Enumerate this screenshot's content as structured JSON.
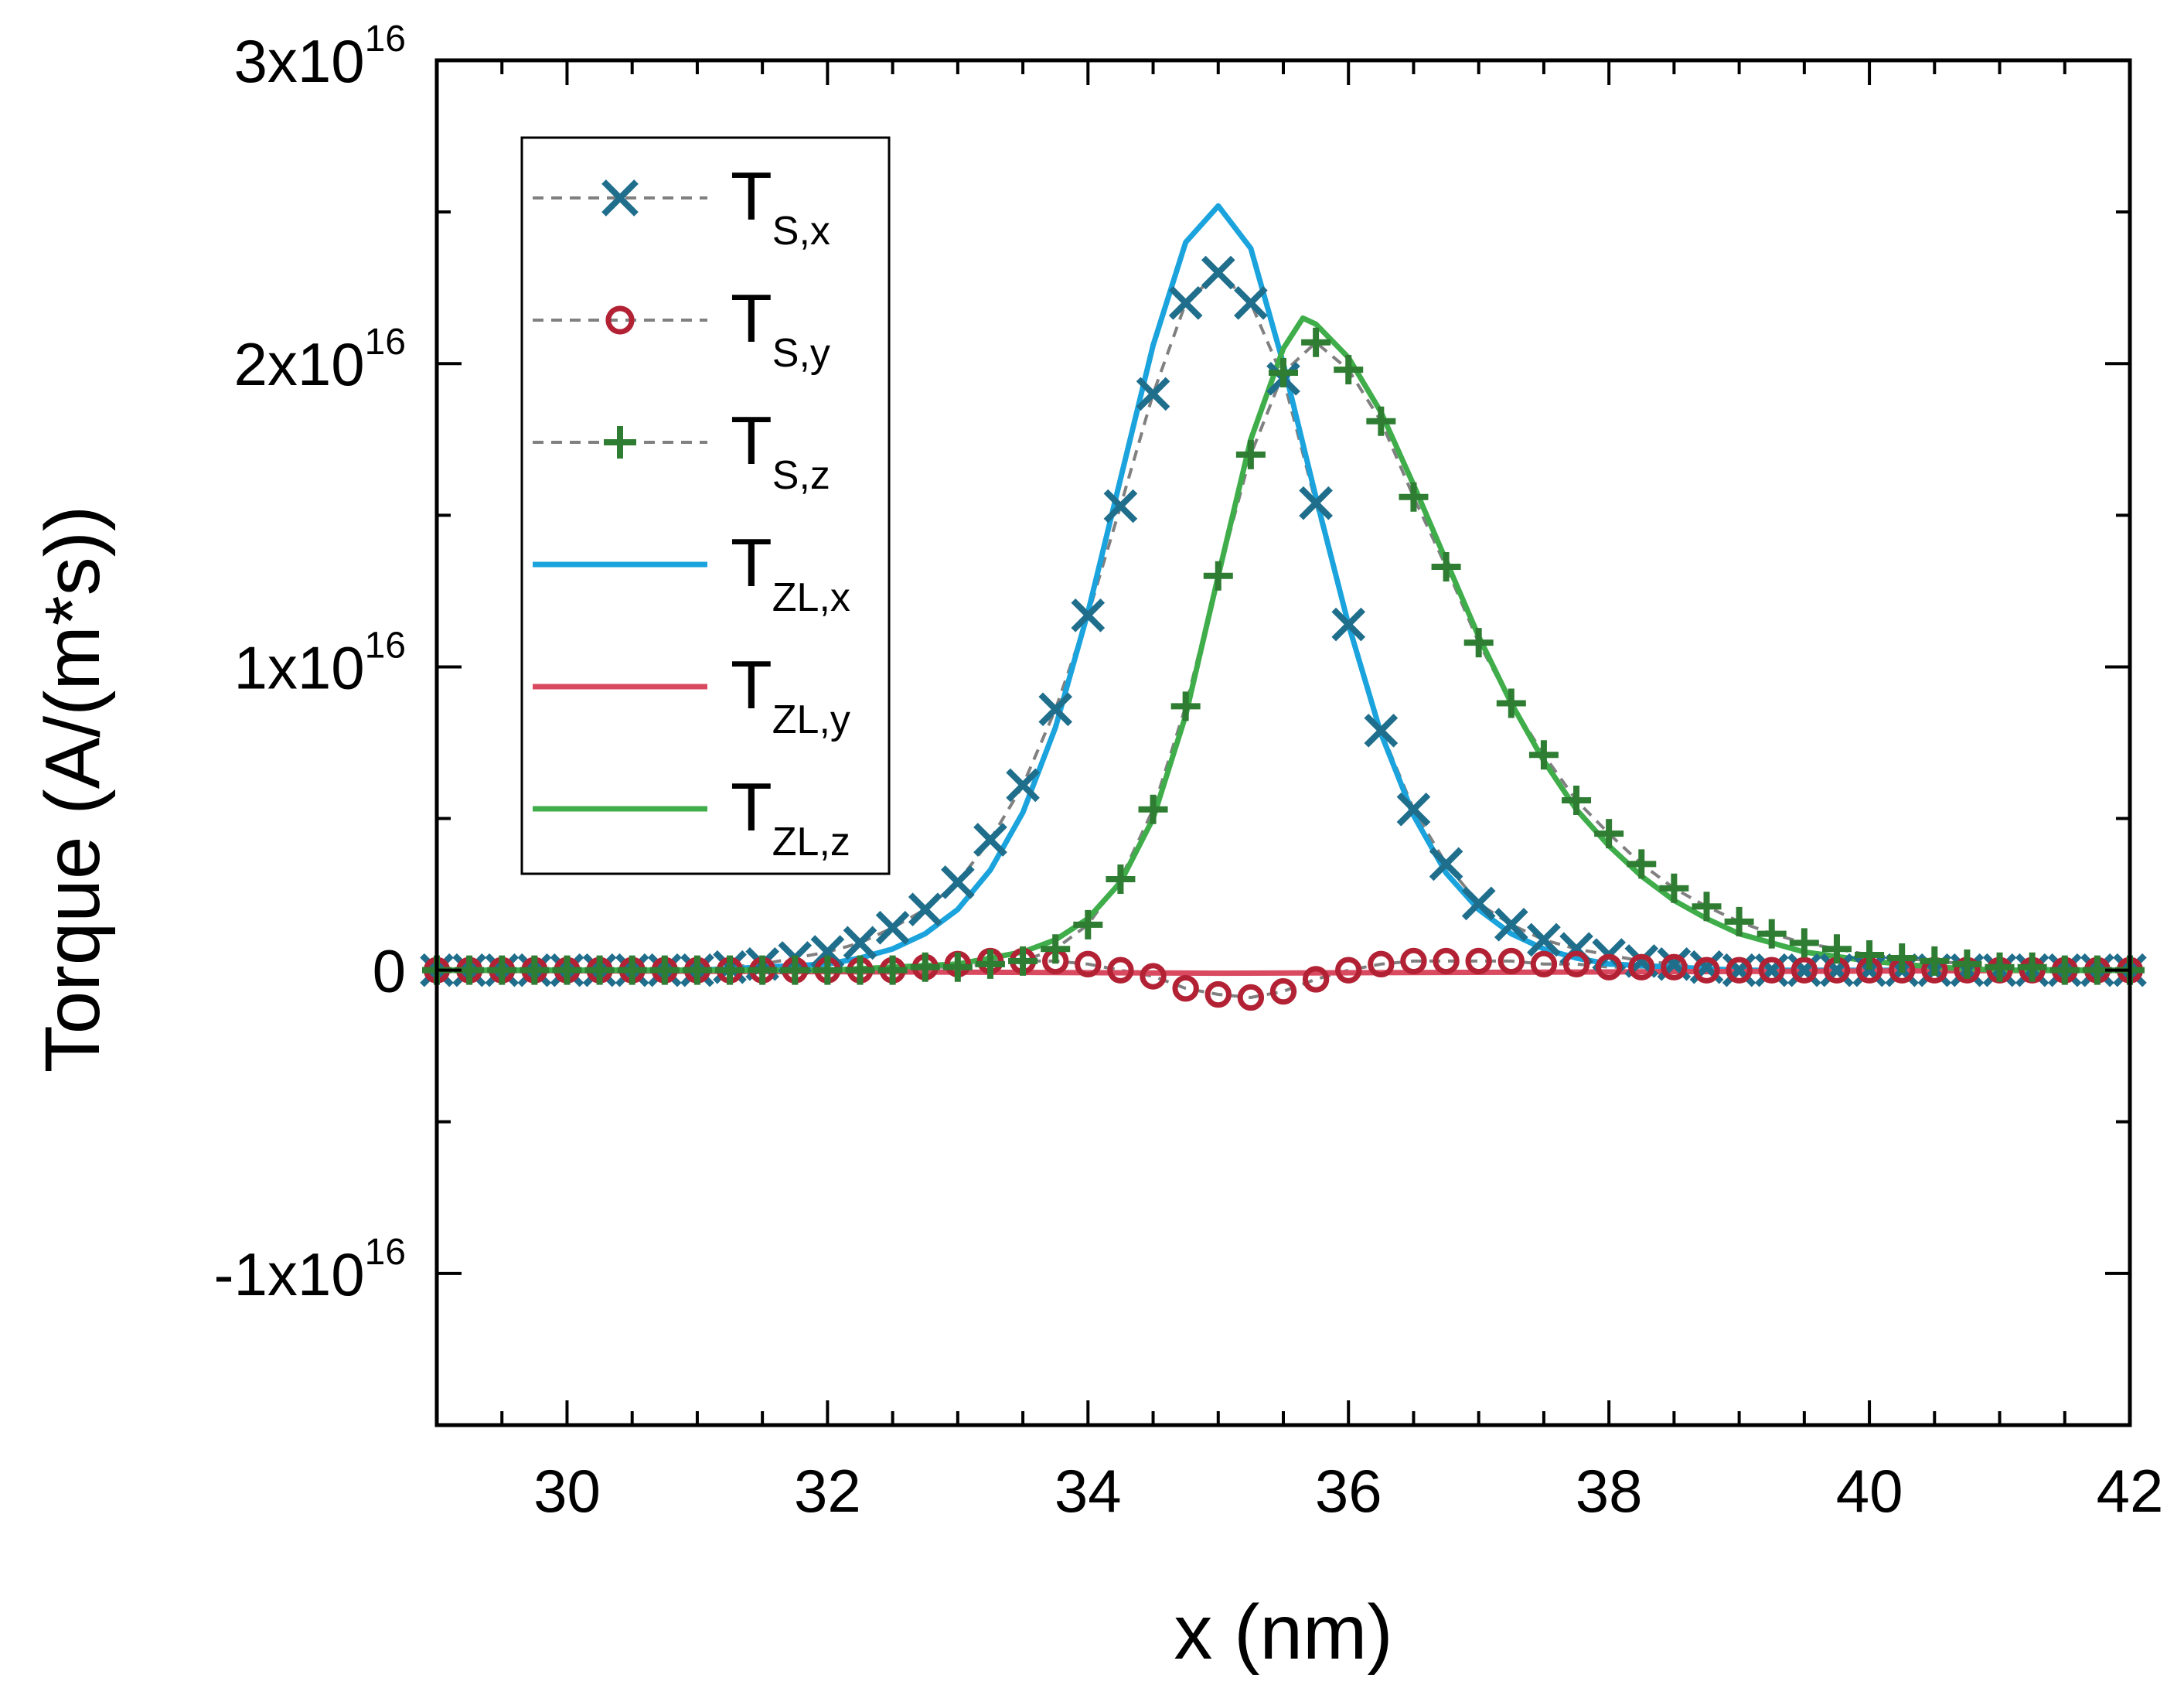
{
  "chart_data": {
    "type": "line",
    "xlabel": "x (nm)",
    "ylabel": "Torque (A/(m*s))",
    "xlim": [
      29,
      42
    ],
    "ylim": [
      -1.5e+16,
      3e+16
    ],
    "x_ticks": [
      {
        "value": 30,
        "label": "30"
      },
      {
        "value": 32,
        "label": "32"
      },
      {
        "value": 34,
        "label": "34"
      },
      {
        "value": 36,
        "label": "36"
      },
      {
        "value": 38,
        "label": "38"
      },
      {
        "value": 40,
        "label": "40"
      },
      {
        "value": 42,
        "label": "42"
      }
    ],
    "y_ticks": [
      {
        "value": -1e+16,
        "mantissa": "-1x10",
        "exp": "16"
      },
      {
        "value": 0,
        "mantissa": "0",
        "exp": ""
      },
      {
        "value": 1e+16,
        "mantissa": "1x10",
        "exp": "16"
      },
      {
        "value": 2e+16,
        "mantissa": "2x10",
        "exp": "16"
      },
      {
        "value": 3e+16,
        "mantissa": "3x10",
        "exp": "16"
      }
    ],
    "legend_position": "top-left",
    "series": [
      {
        "name": "T_S,x",
        "base": "T",
        "sub": "S,x",
        "kind": "markers",
        "marker": "x",
        "color": "#1f6e8c",
        "line_style": "dashed",
        "line_color": "#808080",
        "points": [
          [
            29.0,
            0.0
          ],
          [
            29.25,
            0.0
          ],
          [
            29.5,
            0.0
          ],
          [
            29.75,
            0.0
          ],
          [
            30.0,
            0.0
          ],
          [
            30.25,
            0.0
          ],
          [
            30.5,
            0.0
          ],
          [
            30.75,
            0.0
          ],
          [
            31.0,
            0.0
          ],
          [
            31.25,
            100000000000000.0
          ],
          [
            31.5,
            200000000000000.0
          ],
          [
            31.75,
            400000000000000.0
          ],
          [
            32.0,
            600000000000000.0
          ],
          [
            32.25,
            900000000000000.0
          ],
          [
            32.5,
            1400000000000000.0
          ],
          [
            32.75,
            2000000000000000.0
          ],
          [
            33.0,
            2900000000000000.0
          ],
          [
            33.25,
            4300000000000000.0
          ],
          [
            33.5,
            6100000000000000.0
          ],
          [
            33.75,
            8600000000000000.0
          ],
          [
            34.0,
            1.17e+16
          ],
          [
            34.25,
            1.53e+16
          ],
          [
            34.5,
            1.9e+16
          ],
          [
            34.75,
            2.2e+16
          ],
          [
            35.0,
            2.3e+16
          ],
          [
            35.25,
            2.2e+16
          ],
          [
            35.5,
            1.95e+16
          ],
          [
            35.75,
            1.54e+16
          ],
          [
            36.0,
            1.14e+16
          ],
          [
            36.25,
            7900000000000000.0
          ],
          [
            36.5,
            5300000000000000.0
          ],
          [
            36.75,
            3500000000000000.0
          ],
          [
            37.0,
            2200000000000000.0
          ],
          [
            37.25,
            1500000000000000.0
          ],
          [
            37.5,
            1000000000000000.0
          ],
          [
            37.75,
            700000000000000.0
          ],
          [
            38.0,
            500000000000000.0
          ],
          [
            38.25,
            300000000000000.0
          ],
          [
            38.5,
            200000000000000.0
          ],
          [
            38.75,
            100000000000000.0
          ],
          [
            39.0,
            0.0
          ],
          [
            39.25,
            0.0
          ],
          [
            39.5,
            0.0
          ],
          [
            39.75,
            0.0
          ],
          [
            40.0,
            0.0
          ],
          [
            40.25,
            0.0
          ],
          [
            40.5,
            0.0
          ],
          [
            40.75,
            0.0
          ],
          [
            41.0,
            0.0
          ],
          [
            41.25,
            0.0
          ],
          [
            41.5,
            0.0
          ],
          [
            41.75,
            0.0
          ],
          [
            42.0,
            0.0
          ]
        ]
      },
      {
        "name": "T_S,y",
        "base": "T",
        "sub": "S,y",
        "kind": "markers",
        "marker": "circle",
        "color": "#b22234",
        "line_style": "dashed",
        "line_color": "#808080",
        "points": [
          [
            29.0,
            0.0
          ],
          [
            29.25,
            0.0
          ],
          [
            29.5,
            0.0
          ],
          [
            29.75,
            0.0
          ],
          [
            30.0,
            0.0
          ],
          [
            30.25,
            0.0
          ],
          [
            30.5,
            0.0
          ],
          [
            30.75,
            0.0
          ],
          [
            31.0,
            0.0
          ],
          [
            31.25,
            0.0
          ],
          [
            31.5,
            0.0
          ],
          [
            31.75,
            0.0
          ],
          [
            32.0,
            0.0
          ],
          [
            32.25,
            0.0
          ],
          [
            32.5,
            0.0
          ],
          [
            32.75,
            100000000000000.0
          ],
          [
            33.0,
            200000000000000.0
          ],
          [
            33.25,
            300000000000000.0
          ],
          [
            33.5,
            300000000000000.0
          ],
          [
            33.75,
            300000000000000.0
          ],
          [
            34.0,
            200000000000000.0
          ],
          [
            34.25,
            0.0
          ],
          [
            34.5,
            -200000000000000.0
          ],
          [
            34.75,
            -600000000000000.0
          ],
          [
            35.0,
            -800000000000000.0
          ],
          [
            35.25,
            -900000000000000.0
          ],
          [
            35.5,
            -700000000000000.0
          ],
          [
            35.75,
            -300000000000000.0
          ],
          [
            36.0,
            0.0
          ],
          [
            36.25,
            200000000000000.0
          ],
          [
            36.5,
            300000000000000.0
          ],
          [
            36.75,
            300000000000000.0
          ],
          [
            37.0,
            300000000000000.0
          ],
          [
            37.25,
            300000000000000.0
          ],
          [
            37.5,
            200000000000000.0
          ],
          [
            37.75,
            200000000000000.0
          ],
          [
            38.0,
            100000000000000.0
          ],
          [
            38.25,
            100000000000000.0
          ],
          [
            38.5,
            100000000000000.0
          ],
          [
            38.75,
            0.0
          ],
          [
            39.0,
            0.0
          ],
          [
            39.25,
            0.0
          ],
          [
            39.5,
            0.0
          ],
          [
            39.75,
            0.0
          ],
          [
            40.0,
            0.0
          ],
          [
            40.25,
            0.0
          ],
          [
            40.5,
            0.0
          ],
          [
            40.75,
            0.0
          ],
          [
            41.0,
            0.0
          ],
          [
            41.25,
            0.0
          ],
          [
            41.5,
            0.0
          ],
          [
            41.75,
            0.0
          ],
          [
            42.0,
            0.0
          ]
        ]
      },
      {
        "name": "T_S,z",
        "base": "T",
        "sub": "S,z",
        "kind": "markers",
        "marker": "plus",
        "color": "#2e7d32",
        "line_style": "dashed",
        "line_color": "#808080",
        "points": [
          [
            29.0,
            0.0
          ],
          [
            29.25,
            0.0
          ],
          [
            29.5,
            0.0
          ],
          [
            29.75,
            0.0
          ],
          [
            30.0,
            0.0
          ],
          [
            30.25,
            0.0
          ],
          [
            30.5,
            0.0
          ],
          [
            30.75,
            0.0
          ],
          [
            31.0,
            0.0
          ],
          [
            31.25,
            0.0
          ],
          [
            31.5,
            0.0
          ],
          [
            31.75,
            0.0
          ],
          [
            32.0,
            0.0
          ],
          [
            32.25,
            0.0
          ],
          [
            32.5,
            0.0
          ],
          [
            32.75,
            100000000000000.0
          ],
          [
            33.0,
            100000000000000.0
          ],
          [
            33.25,
            200000000000000.0
          ],
          [
            33.5,
            300000000000000.0
          ],
          [
            33.75,
            700000000000000.0
          ],
          [
            34.0,
            1500000000000000.0
          ],
          [
            34.25,
            3000000000000000.0
          ],
          [
            34.5,
            5300000000000000.0
          ],
          [
            34.75,
            8700000000000000.0
          ],
          [
            35.0,
            1.3e+16
          ],
          [
            35.25,
            1.7e+16
          ],
          [
            35.5,
            1.97e+16
          ],
          [
            35.75,
            2.07e+16
          ],
          [
            36.0,
            1.98e+16
          ],
          [
            36.25,
            1.81e+16
          ],
          [
            36.5,
            1.56e+16
          ],
          [
            36.75,
            1.33e+16
          ],
          [
            37.0,
            1.08e+16
          ],
          [
            37.25,
            8800000000000000.0
          ],
          [
            37.5,
            7100000000000000.0
          ],
          [
            37.75,
            5600000000000000.0
          ],
          [
            38.0,
            4500000000000000.0
          ],
          [
            38.25,
            3500000000000000.0
          ],
          [
            38.5,
            2700000000000000.0
          ],
          [
            38.75,
            2100000000000000.0
          ],
          [
            39.0,
            1600000000000000.0
          ],
          [
            39.25,
            1200000000000000.0
          ],
          [
            39.5,
            900000000000000.0
          ],
          [
            39.75,
            700000000000000.0
          ],
          [
            40.0,
            500000000000000.0
          ],
          [
            40.25,
            400000000000000.0
          ],
          [
            40.5,
            300000000000000.0
          ],
          [
            40.75,
            200000000000000.0
          ],
          [
            41.0,
            100000000000000.0
          ],
          [
            41.25,
            100000000000000.0
          ],
          [
            41.5,
            0.0
          ],
          [
            41.75,
            0.0
          ],
          [
            42.0,
            0.0
          ]
        ]
      },
      {
        "name": "T_ZL,x",
        "base": "T",
        "sub": "ZL,x",
        "kind": "line",
        "color": "#1aa3dc",
        "points": [
          [
            29.0,
            0.0
          ],
          [
            30.0,
            0.0
          ],
          [
            31.0,
            0.0
          ],
          [
            31.5,
            100000000000000.0
          ],
          [
            32.0,
            200000000000000.0
          ],
          [
            32.25,
            400000000000000.0
          ],
          [
            32.5,
            700000000000000.0
          ],
          [
            32.75,
            1200000000000000.0
          ],
          [
            33.0,
            2000000000000000.0
          ],
          [
            33.25,
            3300000000000000.0
          ],
          [
            33.5,
            5200000000000000.0
          ],
          [
            33.75,
            8000000000000000.0
          ],
          [
            34.0,
            1.18e+16
          ],
          [
            34.25,
            1.62e+16
          ],
          [
            34.5,
            2.06e+16
          ],
          [
            34.75,
            2.4e+16
          ],
          [
            35.0,
            2.52e+16
          ],
          [
            35.25,
            2.38e+16
          ],
          [
            35.5,
            2e+16
          ],
          [
            35.75,
            1.56e+16
          ],
          [
            36.0,
            1.14e+16
          ],
          [
            36.25,
            7800000000000000.0
          ],
          [
            36.5,
            5100000000000000.0
          ],
          [
            36.75,
            3200000000000000.0
          ],
          [
            37.0,
            2000000000000000.0
          ],
          [
            37.25,
            1200000000000000.0
          ],
          [
            37.5,
            700000000000000.0
          ],
          [
            37.75,
            400000000000000.0
          ],
          [
            38.0,
            200000000000000.0
          ],
          [
            38.5,
            100000000000000.0
          ],
          [
            39.0,
            0.0
          ],
          [
            40.0,
            0.0
          ],
          [
            41.0,
            0.0
          ],
          [
            42.0,
            0.0
          ]
        ]
      },
      {
        "name": "T_ZL,y",
        "base": "T",
        "sub": "ZL,y",
        "kind": "line",
        "color": "#d94a60",
        "points": [
          [
            29.0,
            0.0
          ],
          [
            35.0,
            -100000000000000.0
          ],
          [
            42.0,
            0.0
          ]
        ]
      },
      {
        "name": "T_ZL,z",
        "base": "T",
        "sub": "ZL,z",
        "kind": "line",
        "color": "#3fad4a",
        "points": [
          [
            29.0,
            0.0
          ],
          [
            31.0,
            0.0
          ],
          [
            32.0,
            0.0
          ],
          [
            32.5,
            100000000000000.0
          ],
          [
            33.0,
            200000000000000.0
          ],
          [
            33.25,
            400000000000000.0
          ],
          [
            33.5,
            600000000000000.0
          ],
          [
            33.75,
            1000000000000000.0
          ],
          [
            34.0,
            1700000000000000.0
          ],
          [
            34.25,
            2900000000000000.0
          ],
          [
            34.5,
            5000000000000000.0
          ],
          [
            34.75,
            8400000000000000.0
          ],
          [
            35.0,
            1.3e+16
          ],
          [
            35.25,
            1.75e+16
          ],
          [
            35.5,
            2.05e+16
          ],
          [
            35.65,
            2.15e+16
          ],
          [
            35.75,
            2.13e+16
          ],
          [
            36.0,
            2.02e+16
          ],
          [
            36.25,
            1.84e+16
          ],
          [
            36.5,
            1.6e+16
          ],
          [
            36.75,
            1.35e+16
          ],
          [
            37.0,
            1.1e+16
          ],
          [
            37.25,
            8800000000000000.0
          ],
          [
            37.5,
            6900000000000000.0
          ],
          [
            37.75,
            5300000000000000.0
          ],
          [
            38.0,
            4100000000000000.0
          ],
          [
            38.25,
            3100000000000000.0
          ],
          [
            38.5,
            2300000000000000.0
          ],
          [
            38.75,
            1700000000000000.0
          ],
          [
            39.0,
            1200000000000000.0
          ],
          [
            39.5,
            600000000000000.0
          ],
          [
            40.0,
            300000000000000.0
          ],
          [
            40.5,
            100000000000000.0
          ],
          [
            41.0,
            0.0
          ],
          [
            42.0,
            0.0
          ]
        ]
      }
    ]
  }
}
